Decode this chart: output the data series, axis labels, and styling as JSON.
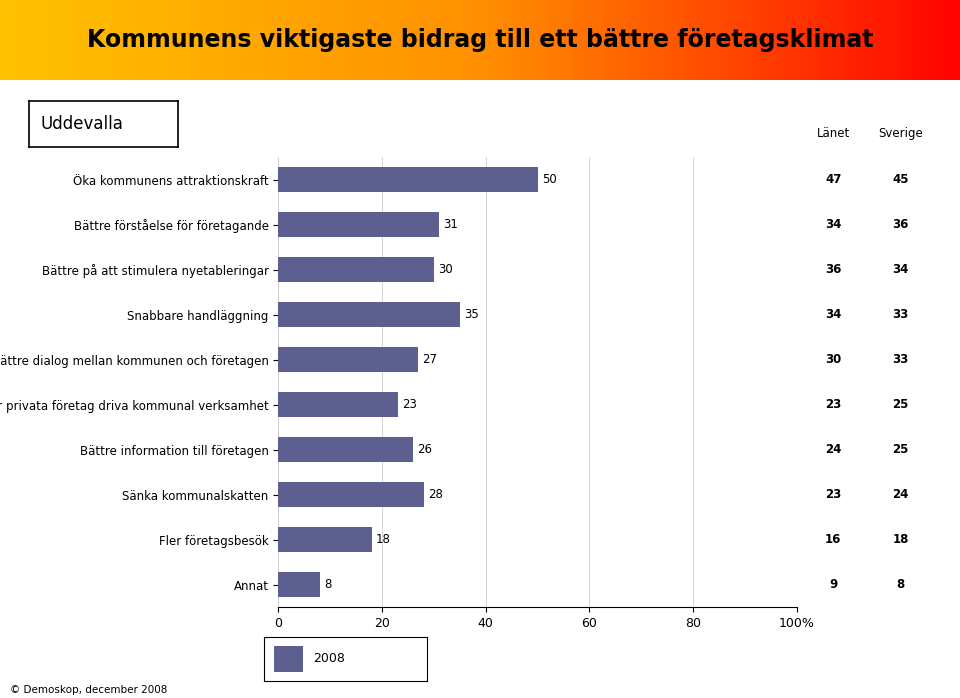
{
  "title": "Kommunens viktigaste bidrag till ett bättre företagsklimat",
  "subtitle": "Uddevalla",
  "categories": [
    "Öka kommunens attraktionskraft",
    "Bättre förståelse för företagande",
    "Bättre på att stimulera nyetableringar",
    "Snabbare handläggning",
    "Bättre dialog mellan kommunen och företagen",
    "Låta fler privata företag driva kommunal verksamhet",
    "Bättre information till företagen",
    "Sänka kommunalskatten",
    "Fler företagsbesök",
    "Annat"
  ],
  "values": [
    50,
    31,
    30,
    35,
    27,
    23,
    26,
    28,
    18,
    8
  ],
  "lanet": [
    47,
    34,
    36,
    34,
    30,
    23,
    24,
    23,
    16,
    9
  ],
  "sverige": [
    45,
    36,
    34,
    33,
    33,
    25,
    25,
    24,
    18,
    8
  ],
  "bar_color": "#5d5f8e",
  "title_color_left": "#f5c200",
  "title_color_right": "#e02020",
  "title_text_color": "#1a1a1a",
  "xlim": [
    0,
    100
  ],
  "xticks": [
    0,
    20,
    40,
    60,
    80,
    100
  ],
  "xtick_labels": [
    "0",
    "20",
    "40",
    "60",
    "80",
    "100%"
  ],
  "footer": "© Demoskop, december 2008",
  "legend_label": "2008",
  "lanet_label": "Länet",
  "sverige_label": "Sverige"
}
